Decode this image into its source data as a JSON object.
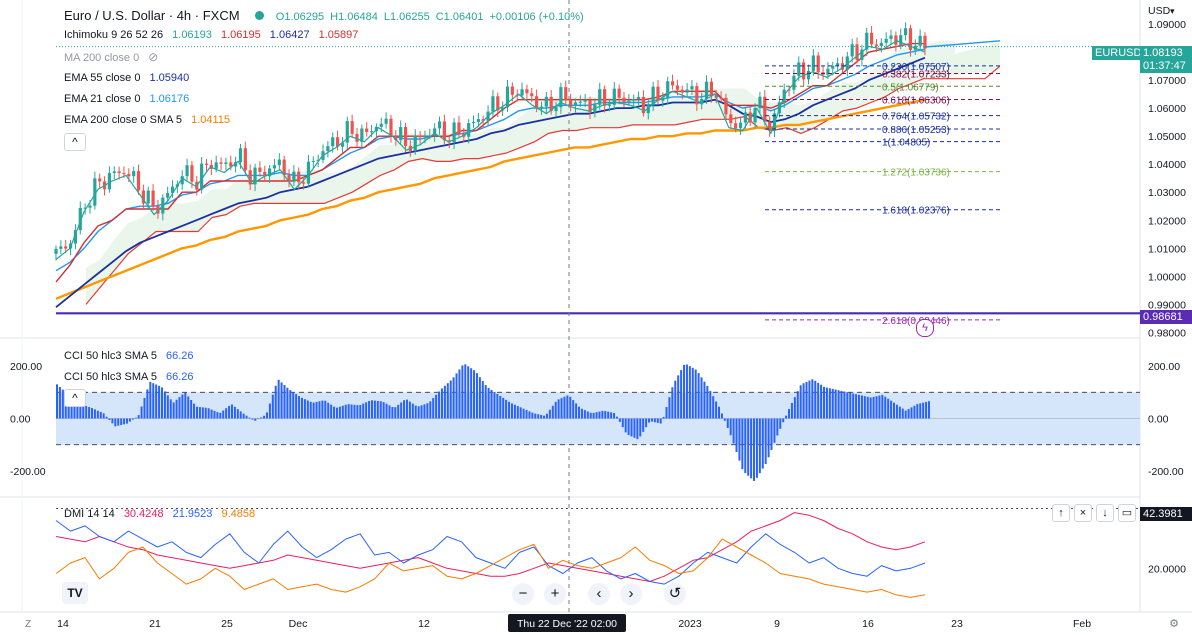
{
  "header": {
    "symbol_title": "Euro / U.S. Dollar · 4h · FXCM",
    "ohlc": {
      "open": "O1.06295",
      "high": "H1.06484",
      "low": "L1.06255",
      "close": "C1.06401",
      "change": "+0.00106 (+0.10%)"
    }
  },
  "indicators": {
    "ichimoku": {
      "label": "Ichimoku 9 26 52 26",
      "values": [
        "1.06193",
        "1.06195",
        "1.06427",
        "1.05897"
      ]
    },
    "ma200": {
      "label": "MA 200 close 0"
    },
    "ema55": {
      "label": "EMA 55 close 0",
      "value": "1.05940"
    },
    "ema21": {
      "label": "EMA 21 close 0",
      "value": "1.06176"
    },
    "ema200": {
      "label": "EMA 200 close 0 SMA 5",
      "value": "1.04115"
    }
  },
  "price_axis": {
    "currency": "USD",
    "ticks": [
      "1.09000",
      "1.08000",
      "1.07000",
      "1.06000",
      "1.05000",
      "1.04000",
      "1.03000",
      "1.02000",
      "1.01000",
      "1.00000",
      "0.99000",
      "0.98000"
    ],
    "symbol_tag": "EURUSD",
    "price_tag": "1.08193",
    "countdown": "01:37:47",
    "line_tag": "0.98681"
  },
  "fibonacci": [
    {
      "label": "0.236(1.07507)"
    },
    {
      "label": "0.382(1.07233)"
    },
    {
      "label": "0.5(1.06779)"
    },
    {
      "label": "0.618(1.06306)"
    },
    {
      "label": "0.764(1.05732)"
    },
    {
      "label": "0.886(1.05253)"
    },
    {
      "label": "1(1.04805)"
    },
    {
      "label": "1.272(1.03736)"
    },
    {
      "label": "1.618(1.02376)"
    },
    {
      "label": "2.618(0.98446)"
    }
  ],
  "cci": {
    "label1": "CCI 50 hlc3 SMA 5",
    "value1": "66.26",
    "label2": "CCI 50 hlc3 SMA 5",
    "value2": "66.26",
    "ticks": [
      "200.00",
      "0.00",
      "-200.00"
    ]
  },
  "dmi": {
    "label": "DMI 14 14",
    "values": [
      "30.4248",
      "21.9523",
      "9.4858"
    ],
    "tick": "20.0000",
    "tag": "42.3981"
  },
  "time_axis": {
    "labels": [
      "14",
      "21",
      "25",
      "Dec",
      "12",
      "Thu 22 Dec '22",
      "02:00",
      "2023",
      "9",
      "16",
      "23",
      "Feb"
    ]
  },
  "nav_controls": {
    "zoom_out": "−",
    "zoom_in": "+",
    "scroll_left": "‹",
    "scroll_right": "›",
    "reset": "↺",
    "collapse": "^"
  },
  "chart_data": [
    {
      "type": "candlestick",
      "title": "Euro / U.S. Dollar · 4h · FXCM",
      "ylim": [
        0.978,
        1.095
      ],
      "x_range_days": [
        "2022-11-14",
        "2023-02-01"
      ],
      "colors": {
        "up": "#26a69a",
        "down": "#ef5350",
        "ema21": "#2196f3",
        "ema55": "#1a2fa0",
        "ema200": "#ff9800",
        "kumo": "#e8f5e9",
        "tenkan": "#26a69a",
        "kijun": "#d32f2f"
      },
      "horizontal_line": 0.98681,
      "fib_levels": [
        1.07507,
        1.07233,
        1.06779,
        1.06306,
        1.05732,
        1.05253,
        1.04805,
        1.03736,
        1.02376,
        0.98446
      ],
      "series": [
        {
          "name": "close",
          "values": [
            1.008,
            1.012,
            1.025,
            1.033,
            1.036,
            1.038,
            1.031,
            1.024,
            1.029,
            1.037,
            1.034,
            1.041,
            1.039,
            1.043,
            1.035,
            1.038,
            1.04,
            1.033,
            1.038,
            1.045,
            1.048,
            1.052,
            1.05,
            1.055,
            1.052,
            1.047,
            1.049,
            1.053,
            1.05,
            1.052,
            1.055,
            1.06,
            1.063,
            1.067,
            1.063,
            1.06,
            1.064,
            1.062,
            1.061,
            1.063,
            1.064,
            1.063,
            1.061,
            1.065,
            1.068,
            1.066,
            1.064,
            1.067,
            1.055,
            1.054,
            1.062,
            1.053,
            1.067,
            1.073,
            1.075,
            1.073,
            1.076,
            1.08,
            1.084,
            1.083,
            1.086,
            1.084,
            1.082
          ]
        },
        {
          "name": "EMA 21",
          "values": [
            1.002,
            1.005,
            1.01,
            1.016,
            1.02,
            1.024,
            1.025,
            1.025,
            1.026,
            1.029,
            1.03,
            1.033,
            1.034,
            1.036,
            1.036,
            1.036,
            1.037,
            1.036,
            1.036,
            1.038,
            1.041,
            1.044,
            1.046,
            1.049,
            1.05,
            1.049,
            1.049,
            1.05,
            1.05,
            1.051,
            1.052,
            1.054,
            1.056,
            1.059,
            1.06,
            1.06,
            1.061,
            1.061,
            1.061,
            1.062,
            1.062,
            1.062,
            1.062,
            1.063,
            1.064,
            1.064,
            1.064,
            1.065,
            1.062,
            1.06,
            1.061,
            1.059,
            1.061,
            1.064,
            1.067,
            1.068,
            1.07,
            1.072,
            1.075,
            1.077,
            1.079,
            1.08,
            1.081
          ]
        },
        {
          "name": "EMA 55",
          "values": [
            0.989,
            0.993,
            0.997,
            1.001,
            1.005,
            1.009,
            1.012,
            1.014,
            1.016,
            1.018,
            1.02,
            1.022,
            1.024,
            1.026,
            1.027,
            1.028,
            1.03,
            1.031,
            1.032,
            1.034,
            1.036,
            1.038,
            1.04,
            1.042,
            1.043,
            1.044,
            1.045,
            1.046,
            1.047,
            1.048,
            1.049,
            1.051,
            1.052,
            1.054,
            1.055,
            1.056,
            1.057,
            1.058,
            1.058,
            1.059,
            1.06,
            1.06,
            1.061,
            1.061,
            1.062,
            1.062,
            1.062,
            1.063,
            1.061,
            1.058,
            1.057,
            1.055,
            1.056,
            1.058,
            1.061,
            1.063,
            1.065,
            1.067,
            1.07,
            1.072,
            1.074,
            1.076,
            1.078
          ]
        },
        {
          "name": "EMA 200",
          "values": [
            0.992,
            0.994,
            0.996,
            0.998,
            1.0,
            1.002,
            1.004,
            1.006,
            1.008,
            1.01,
            1.011,
            1.013,
            1.014,
            1.016,
            1.017,
            1.018,
            1.02,
            1.021,
            1.022,
            1.024,
            1.025,
            1.027,
            1.028,
            1.03,
            1.031,
            1.032,
            1.033,
            1.035,
            1.036,
            1.037,
            1.038,
            1.039,
            1.041,
            1.042,
            1.043,
            1.044,
            1.045,
            1.046,
            1.046,
            1.047,
            1.048,
            1.049,
            1.049,
            1.05,
            1.05,
            1.051,
            1.051,
            1.052,
            1.052,
            1.052,
            1.053,
            1.053,
            1.054,
            1.054,
            1.055,
            1.056,
            1.057,
            1.058,
            1.059,
            1.06,
            1.061,
            1.062,
            1.063
          ]
        },
        {
          "name": "Kijun",
          "values": [
            0.998,
            1.004,
            1.012,
            1.018,
            1.02,
            1.024,
            1.024,
            1.024,
            1.024,
            1.03,
            1.03,
            1.034,
            1.034,
            1.034,
            1.034,
            1.034,
            1.034,
            1.034,
            1.036,
            1.038,
            1.042,
            1.046,
            1.046,
            1.05,
            1.05,
            1.05,
            1.05,
            1.05,
            1.05,
            1.052,
            1.052,
            1.056,
            1.06,
            1.063,
            1.063,
            1.063,
            1.063,
            1.063,
            1.063,
            1.063,
            1.063,
            1.063,
            1.063,
            1.064,
            1.066,
            1.066,
            1.066,
            1.066,
            1.061,
            1.061,
            1.061,
            1.06,
            1.062,
            1.065,
            1.068,
            1.068,
            1.072,
            1.076,
            1.08,
            1.081,
            1.082,
            1.083,
            1.083
          ]
        }
      ]
    },
    {
      "type": "bar",
      "title": "CCI 50 hlc3 SMA 5",
      "ylim": [
        -280,
        280
      ],
      "guide_lines": [
        100,
        0,
        -100
      ],
      "colors": {
        "bars": "#2962ff",
        "band": "#d5e6fb"
      },
      "values": [
        130,
        90,
        55,
        40,
        20,
        -30,
        -20,
        10,
        140,
        120,
        60,
        100,
        45,
        40,
        20,
        55,
        20,
        -10,
        15,
        150,
        110,
        80,
        60,
        70,
        40,
        55,
        50,
        70,
        65,
        40,
        75,
        45,
        60,
        110,
        150,
        210,
        180,
        120,
        90,
        60,
        40,
        20,
        10,
        70,
        90,
        40,
        20,
        30,
        20,
        -60,
        -80,
        -10,
        -20,
        130,
        210,
        185,
        120,
        40,
        -70,
        -200,
        -240,
        -170,
        -60,
        40,
        130,
        150,
        120,
        110,
        100,
        90,
        80,
        90,
        60,
        30,
        55,
        66
      ]
    },
    {
      "type": "line",
      "title": "DMI 14 14",
      "ylim": [
        5,
        45
      ],
      "colors": {
        "dx": "#e91e63",
        "plus_di": "#2962ff",
        "minus_di": "#f57c00"
      },
      "series": [
        {
          "name": "30.4248",
          "values": [
            32,
            31,
            30,
            32,
            30,
            28,
            27,
            25,
            24,
            23,
            22,
            21,
            20,
            21,
            22,
            23,
            25,
            24,
            23,
            22,
            21,
            20,
            21,
            22,
            23,
            24,
            22,
            20,
            19,
            18,
            17,
            17,
            18,
            20,
            22,
            21,
            20,
            19,
            18,
            17,
            16,
            15,
            17,
            20,
            23,
            24,
            27,
            30,
            34,
            36,
            38,
            41,
            40,
            38,
            35,
            33,
            30,
            28,
            27,
            28,
            30
          ]
        },
        {
          "name": "21.9523",
          "values": [
            38,
            34,
            36,
            32,
            30,
            34,
            31,
            28,
            30,
            26,
            24,
            29,
            33,
            26,
            22,
            29,
            34,
            28,
            24,
            27,
            31,
            33,
            25,
            26,
            22,
            25,
            27,
            32,
            30,
            24,
            22,
            20,
            26,
            28,
            21,
            18,
            22,
            24,
            19,
            16,
            18,
            15,
            14,
            17,
            22,
            26,
            24,
            22,
            28,
            33,
            29,
            26,
            22,
            24,
            20,
            18,
            17,
            21,
            19,
            20,
            22
          ]
        },
        {
          "name": "9.4858",
          "values": [
            18,
            22,
            24,
            16,
            20,
            26,
            28,
            22,
            18,
            14,
            16,
            20,
            17,
            12,
            14,
            16,
            12,
            13,
            14,
            12,
            11,
            13,
            16,
            22,
            19,
            20,
            21,
            17,
            16,
            18,
            21,
            24,
            27,
            29,
            20,
            23,
            21,
            20,
            22,
            24,
            28,
            23,
            21,
            18,
            19,
            24,
            31,
            28,
            25,
            22,
            18,
            17,
            16,
            14,
            13,
            12,
            11,
            12,
            10,
            9,
            10
          ]
        }
      ]
    }
  ]
}
